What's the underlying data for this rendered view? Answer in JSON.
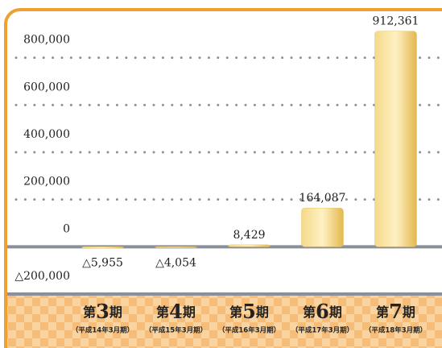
{
  "chart_data": {
    "type": "bar",
    "categories": [
      "第3期",
      "第4期",
      "第5期",
      "第6期",
      "第7期"
    ],
    "period_labels": [
      "（平成14年3月期）",
      "（平成15年3月期）",
      "（平成16年3月期）",
      "（平成17年3月期）",
      "（平成18年3月期）"
    ],
    "values": [
      -5955,
      -4054,
      8429,
      164087,
      912361
    ],
    "value_labels": [
      "△5,955",
      "△4,054",
      "8,429",
      "164,087",
      "912,361"
    ],
    "color": "#e9c35f",
    "ylim": [
      -200000,
      1000000
    ],
    "yticks": [
      {
        "value": -200000,
        "label": "△200,000"
      },
      0,
      {
        "value": 200000,
        "label": "200,000"
      },
      {
        "value": 400000,
        "label": "400,000"
      },
      {
        "value": 600000,
        "label": "600,000"
      },
      {
        "value": 800000,
        "label": "800,000"
      }
    ],
    "grid": true
  }
}
